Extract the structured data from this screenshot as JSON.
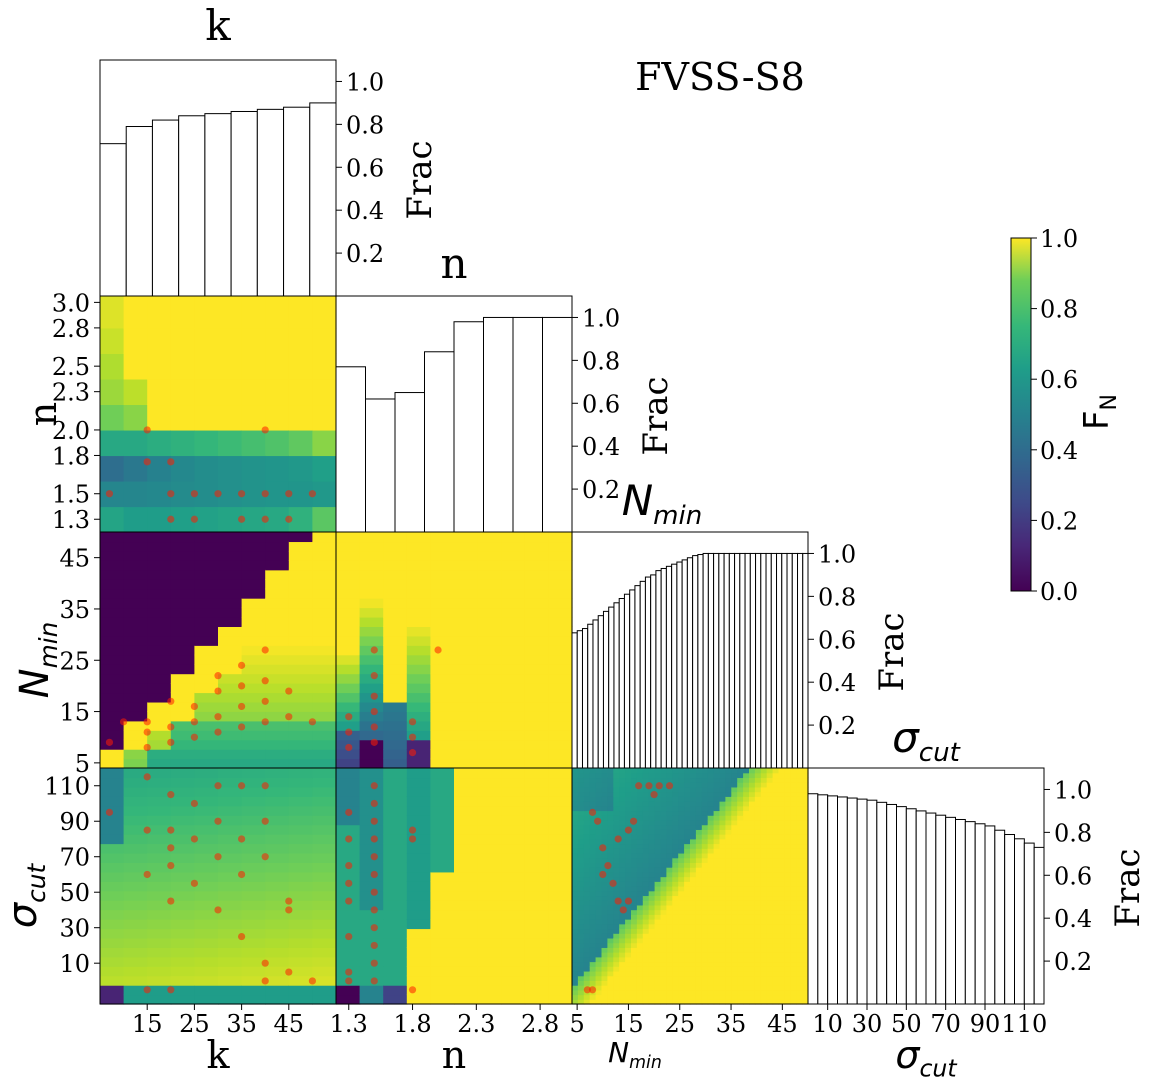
{
  "title": "FVSS-S8",
  "params": [
    "k",
    "n",
    "N_min",
    "σ_cut"
  ],
  "colorbar": {
    "label": "F_N",
    "range": [
      0,
      1
    ],
    "ticks": [
      "0.0",
      "0.2",
      "0.4",
      "0.6",
      "0.8",
      "1.0"
    ],
    "colormap": "viridis"
  },
  "chart_data": [
    {
      "type": "bar",
      "panel": "k-hist",
      "title": "k",
      "ylabel": "Frac",
      "ylim": [
        0,
        1.1
      ],
      "yticks": [
        "0.2",
        "0.4",
        "0.6",
        "0.8",
        "1.0"
      ],
      "x": [
        7.5,
        12.5,
        17.5,
        22.5,
        27.5,
        32.5,
        37.5,
        42.5,
        47.5
      ],
      "values": [
        0.71,
        0.79,
        0.82,
        0.84,
        0.85,
        0.86,
        0.87,
        0.88,
        0.9
      ]
    },
    {
      "type": "bar",
      "panel": "n-hist",
      "title": "n",
      "ylabel": "Frac",
      "ylim": [
        0,
        1.1
      ],
      "yticks": [
        "0.2",
        "0.4",
        "0.6",
        "0.8",
        "1.0"
      ],
      "x": [
        1.2,
        1.45,
        1.7,
        1.95,
        2.2,
        2.45,
        2.7,
        2.95
      ],
      "values": [
        0.77,
        0.62,
        0.65,
        0.84,
        0.98,
        1.0,
        1.0,
        1.0
      ]
    },
    {
      "type": "bar",
      "panel": "Nmin-hist",
      "title": "N_min",
      "ylabel": "Frac",
      "ylim": [
        0,
        1.1
      ],
      "yticks": [
        "0.2",
        "0.4",
        "0.6",
        "0.8",
        "1.0"
      ],
      "x_start": 5,
      "x_step": 1,
      "values": [
        0.63,
        0.64,
        0.65,
        0.67,
        0.69,
        0.71,
        0.73,
        0.75,
        0.77,
        0.79,
        0.81,
        0.83,
        0.85,
        0.87,
        0.89,
        0.9,
        0.92,
        0.93,
        0.94,
        0.95,
        0.96,
        0.97,
        0.98,
        0.99,
        0.995,
        1.0,
        1.0,
        1.0,
        1.0,
        1.0,
        1.0,
        1.0,
        1.0,
        1.0,
        1.0,
        1.0,
        1.0,
        1.0,
        1.0,
        1.0,
        1.0,
        1.0,
        1.0,
        1.0,
        1.0
      ]
    },
    {
      "type": "bar",
      "panel": "sigma-hist",
      "title": "σ_cut",
      "ylabel": "Frac",
      "ylim": [
        0,
        1.1
      ],
      "yticks": [
        "0.2",
        "0.4",
        "0.6",
        "0.8",
        "1.0"
      ],
      "x_start": 0,
      "x_step": 5,
      "values": [
        0.98,
        0.975,
        0.97,
        0.965,
        0.96,
        0.955,
        0.95,
        0.94,
        0.93,
        0.92,
        0.91,
        0.9,
        0.89,
        0.88,
        0.87,
        0.86,
        0.85,
        0.84,
        0.83,
        0.81,
        0.79,
        0.77,
        0.75,
        0.73
      ]
    },
    {
      "type": "heatmap",
      "panel": "n-vs-k",
      "xlabel": "",
      "ylabel": "n",
      "xlim": [
        5,
        55
      ],
      "ylim": [
        1.2,
        3.05
      ],
      "yticks": [
        "1.3",
        "1.5",
        "1.8",
        "2.0",
        "2.3",
        "2.5",
        "2.8",
        "3.0"
      ],
      "x_edges": [
        5,
        10,
        15,
        20,
        25,
        30,
        35,
        40,
        45,
        50,
        55
      ],
      "y_edges": [
        1.2,
        1.4,
        1.6,
        1.8,
        2.0,
        2.2,
        2.4,
        2.6,
        2.8,
        3.05
      ],
      "z": [
        [
          0.58,
          0.55,
          0.55,
          0.56,
          0.57,
          0.58,
          0.59,
          0.6,
          0.64,
          0.74
        ],
        [
          0.46,
          0.46,
          0.47,
          0.48,
          0.49,
          0.5,
          0.51,
          0.52,
          0.52,
          0.53
        ],
        [
          0.36,
          0.4,
          0.44,
          0.47,
          0.49,
          0.5,
          0.51,
          0.52,
          0.53,
          0.56
        ],
        [
          0.6,
          0.6,
          0.62,
          0.64,
          0.66,
          0.68,
          0.7,
          0.72,
          0.75,
          0.82
        ],
        [
          0.78,
          0.82,
          1,
          1,
          1,
          1,
          1,
          1,
          1,
          1
        ],
        [
          0.85,
          0.9,
          1,
          1,
          1,
          1,
          1,
          1,
          1,
          1
        ],
        [
          0.88,
          1,
          1,
          1,
          1,
          1,
          1,
          1,
          1,
          1
        ],
        [
          0.92,
          1,
          1,
          1,
          1,
          1,
          1,
          1,
          1,
          1
        ],
        [
          0.95,
          1,
          1,
          1,
          1,
          1,
          1,
          1,
          1,
          1
        ]
      ],
      "points": [
        [
          7,
          1.5
        ],
        [
          15,
          2.0
        ],
        [
          15,
          1.75
        ],
        [
          20,
          1.75
        ],
        [
          20,
          1.3
        ],
        [
          20,
          1.5
        ],
        [
          25,
          1.5
        ],
        [
          25,
          1.3
        ],
        [
          30,
          1.5
        ],
        [
          35,
          1.5
        ],
        [
          35,
          1.3
        ],
        [
          40,
          1.5
        ],
        [
          40,
          1.3
        ],
        [
          40,
          2.0
        ],
        [
          45,
          1.5
        ],
        [
          45,
          1.3
        ],
        [
          50,
          1.5
        ]
      ]
    },
    {
      "type": "heatmap",
      "panel": "Nmin-vs-k",
      "xlabel": "",
      "ylabel": "N_min",
      "xlim": [
        5,
        55
      ],
      "ylim": [
        4,
        50
      ],
      "yticks": [
        "5",
        "15",
        "25",
        "35",
        "45"
      ],
      "z_note": "purple region where N_min exceeds k, high values near diagonal, mid values at low N_min",
      "points": [
        [
          7,
          9
        ],
        [
          10,
          13
        ],
        [
          15,
          13
        ],
        [
          15,
          11
        ],
        [
          15,
          8
        ],
        [
          20,
          12
        ],
        [
          20,
          9
        ],
        [
          20,
          17
        ],
        [
          25,
          16
        ],
        [
          25,
          13
        ],
        [
          25,
          10
        ],
        [
          30,
          22
        ],
        [
          30,
          19
        ],
        [
          30,
          14
        ],
        [
          30,
          11
        ],
        [
          35,
          24
        ],
        [
          35,
          20
        ],
        [
          35,
          16
        ],
        [
          35,
          12
        ],
        [
          40,
          27
        ],
        [
          40,
          21
        ],
        [
          40,
          17
        ],
        [
          40,
          13
        ],
        [
          45,
          19
        ],
        [
          45,
          14
        ],
        [
          50,
          13
        ]
      ]
    },
    {
      "type": "heatmap",
      "panel": "Nmin-vs-n",
      "xlabel": "",
      "ylabel": "",
      "xlim": [
        1.2,
        3.05
      ],
      "ylim": [
        4,
        50
      ],
      "points": [
        [
          1.3,
          14
        ],
        [
          1.3,
          11
        ],
        [
          1.3,
          8
        ],
        [
          1.5,
          27
        ],
        [
          1.5,
          22
        ],
        [
          1.5,
          18
        ],
        [
          1.5,
          15
        ],
        [
          1.5,
          12
        ],
        [
          1.5,
          9
        ],
        [
          1.8,
          13
        ],
        [
          1.8,
          10
        ],
        [
          1.8,
          7
        ],
        [
          2.0,
          27
        ]
      ]
    },
    {
      "type": "heatmap",
      "panel": "sigma-vs-k",
      "xlabel": "k",
      "ylabel": "σ_cut",
      "xlim": [
        5,
        55
      ],
      "ylim": [
        -13,
        120
      ],
      "xticks": [
        "15",
        "25",
        "35",
        "45"
      ],
      "yticks": [
        "10",
        "30",
        "50",
        "70",
        "90",
        "110"
      ],
      "points": [
        [
          7,
          95
        ],
        [
          15,
          115
        ],
        [
          15,
          85
        ],
        [
          15,
          60
        ],
        [
          20,
          105
        ],
        [
          20,
          85
        ],
        [
          20,
          75
        ],
        [
          20,
          65
        ],
        [
          20,
          45
        ],
        [
          25,
          100
        ],
        [
          25,
          80
        ],
        [
          25,
          55
        ],
        [
          30,
          110
        ],
        [
          30,
          90
        ],
        [
          30,
          70
        ],
        [
          30,
          40
        ],
        [
          35,
          110
        ],
        [
          35,
          80
        ],
        [
          35,
          60
        ],
        [
          35,
          25
        ],
        [
          40,
          110
        ],
        [
          40,
          90
        ],
        [
          40,
          70
        ],
        [
          40,
          10
        ],
        [
          40,
          0
        ],
        [
          45,
          45
        ],
        [
          45,
          40
        ],
        [
          45,
          5
        ],
        [
          50,
          0
        ],
        [
          15,
          -5
        ],
        [
          20,
          -5
        ]
      ]
    },
    {
      "type": "heatmap",
      "panel": "sigma-vs-n",
      "xlabel": "n",
      "ylabel": "",
      "xlim": [
        1.2,
        3.05
      ],
      "ylim": [
        -13,
        120
      ],
      "xticks": [
        "1.3",
        "1.8",
        "2.3",
        "2.8"
      ],
      "points": [
        [
          1.3,
          95
        ],
        [
          1.3,
          80
        ],
        [
          1.3,
          65
        ],
        [
          1.3,
          55
        ],
        [
          1.3,
          45
        ],
        [
          1.3,
          25
        ],
        [
          1.3,
          5
        ],
        [
          1.3,
          0
        ],
        [
          1.5,
          110
        ],
        [
          1.5,
          100
        ],
        [
          1.5,
          90
        ],
        [
          1.5,
          80
        ],
        [
          1.5,
          70
        ],
        [
          1.5,
          60
        ],
        [
          1.5,
          50
        ],
        [
          1.5,
          40
        ],
        [
          1.5,
          30
        ],
        [
          1.5,
          20
        ],
        [
          1.5,
          10
        ],
        [
          1.5,
          0
        ],
        [
          1.8,
          85
        ],
        [
          1.8,
          80
        ],
        [
          1.8,
          -5
        ]
      ]
    },
    {
      "type": "heatmap",
      "panel": "sigma-vs-Nmin",
      "xlabel": "N_min",
      "ylabel": "",
      "xlim": [
        4,
        50
      ],
      "ylim": [
        -13,
        120
      ],
      "xticks": [
        "5",
        "15",
        "25",
        "35",
        "45"
      ],
      "points": [
        [
          8,
          95
        ],
        [
          9,
          90
        ],
        [
          10,
          75
        ],
        [
          10,
          60
        ],
        [
          11,
          65
        ],
        [
          12,
          55
        ],
        [
          13,
          80
        ],
        [
          13,
          45
        ],
        [
          14,
          40
        ],
        [
          15,
          45
        ],
        [
          15,
          85
        ],
        [
          16,
          90
        ],
        [
          17,
          110
        ],
        [
          19,
          110
        ],
        [
          20,
          105
        ],
        [
          21,
          110
        ],
        [
          23,
          110
        ],
        [
          7,
          -5
        ],
        [
          8,
          -5
        ]
      ]
    }
  ]
}
